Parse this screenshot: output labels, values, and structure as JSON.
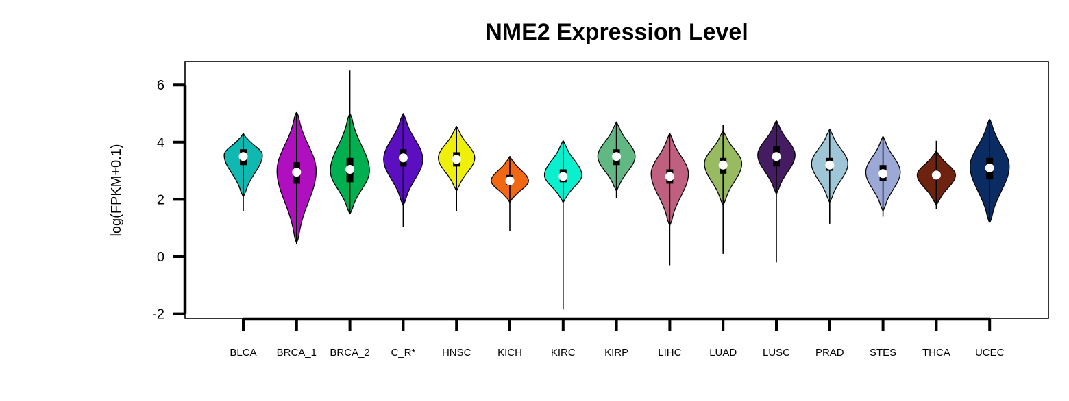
{
  "chart_data": {
    "type": "violin",
    "title": "NME2 Expression Level",
    "xlabel": "",
    "ylabel": "log(FPKM+0.1)",
    "ylim": [
      -2,
      6.5
    ],
    "yticks": [
      -2,
      0,
      2,
      4,
      6
    ],
    "grid": false,
    "legend": "none",
    "categories": [
      "BLCA",
      "BRCA_1",
      "BRCA_2",
      "C_R*",
      "HNSC",
      "KICH",
      "KIRC",
      "KIRP",
      "LIHC",
      "LUAD",
      "LUSC",
      "PRAD",
      "STES",
      "THCA",
      "UCEC"
    ],
    "series": [
      {
        "category": "BLCA",
        "color": "#0fb8b0",
        "min": 1.6,
        "q1": 3.2,
        "median": 3.5,
        "q3": 3.75,
        "max": 4.3,
        "lo": 2.1,
        "hi": 4.3,
        "mode": 3.55,
        "width": 0.82
      },
      {
        "category": "BRCA_1",
        "color": "#b00fc0",
        "min": 0.45,
        "q1": 2.55,
        "median": 2.95,
        "q3": 3.3,
        "max": 5.05,
        "lo": 0.5,
        "hi": 5.05,
        "mode": 3.0,
        "width": 0.84
      },
      {
        "category": "BRCA_2",
        "color": "#00b050",
        "min": 1.5,
        "q1": 2.6,
        "median": 3.05,
        "q3": 3.45,
        "max": 6.5,
        "lo": 1.5,
        "hi": 5.0,
        "mode": 3.0,
        "width": 0.84
      },
      {
        "category": "C_R*",
        "color": "#5b0fc0",
        "min": 1.05,
        "q1": 3.15,
        "median": 3.45,
        "q3": 3.75,
        "max": 5.0,
        "lo": 1.8,
        "hi": 5.0,
        "mode": 3.4,
        "width": 0.84
      },
      {
        "category": "HNSC",
        "color": "#eef00a",
        "min": 1.6,
        "q1": 3.15,
        "median": 3.4,
        "q3": 3.65,
        "max": 4.55,
        "lo": 2.3,
        "hi": 4.55,
        "mode": 3.45,
        "width": 0.78
      },
      {
        "category": "KICH",
        "color": "#f26812",
        "min": 0.9,
        "q1": 2.5,
        "median": 2.65,
        "q3": 2.85,
        "max": 3.5,
        "lo": 1.9,
        "hi": 3.5,
        "mode": 2.65,
        "width": 0.8
      },
      {
        "category": "KIRC",
        "color": "#0af0cf",
        "min": -1.85,
        "q1": 2.6,
        "median": 2.8,
        "q3": 3.05,
        "max": 4.05,
        "lo": 1.9,
        "hi": 4.05,
        "mode": 2.85,
        "width": 0.8
      },
      {
        "category": "KIRP",
        "color": "#62b882",
        "min": 2.05,
        "q1": 3.2,
        "median": 3.5,
        "q3": 3.75,
        "max": 4.7,
        "lo": 2.3,
        "hi": 4.7,
        "mode": 3.5,
        "width": 0.8
      },
      {
        "category": "LIHC",
        "color": "#c06080",
        "min": -0.3,
        "q1": 2.55,
        "median": 2.8,
        "q3": 3.05,
        "max": 4.3,
        "lo": 1.1,
        "hi": 4.3,
        "mode": 2.9,
        "width": 0.8
      },
      {
        "category": "LUAD",
        "color": "#98bb62",
        "min": 0.1,
        "q1": 2.9,
        "median": 3.2,
        "q3": 3.45,
        "max": 4.6,
        "lo": 1.8,
        "hi": 4.4,
        "mode": 3.25,
        "width": 0.8
      },
      {
        "category": "LUSC",
        "color": "#451c62",
        "min": -0.2,
        "q1": 3.15,
        "median": 3.5,
        "q3": 3.85,
        "max": 4.75,
        "lo": 2.2,
        "hi": 4.75,
        "mode": 3.55,
        "width": 0.8
      },
      {
        "category": "PRAD",
        "color": "#9ec6d6",
        "min": 1.15,
        "q1": 3.0,
        "median": 3.2,
        "q3": 3.45,
        "max": 4.45,
        "lo": 1.9,
        "hi": 4.45,
        "mode": 3.25,
        "width": 0.78
      },
      {
        "category": "STES",
        "color": "#9ca8d6",
        "min": 1.4,
        "q1": 2.65,
        "median": 2.9,
        "q3": 3.2,
        "max": 4.2,
        "lo": 1.6,
        "hi": 4.2,
        "mode": 2.95,
        "width": 0.74
      },
      {
        "category": "THCA",
        "color": "#6e2210",
        "min": 1.65,
        "q1": 2.7,
        "median": 2.85,
        "q3": 3.0,
        "max": 4.05,
        "lo": 1.8,
        "hi": 3.7,
        "mode": 2.85,
        "width": 0.82
      },
      {
        "category": "UCEC",
        "color": "#0a2c62",
        "min": 1.2,
        "q1": 2.7,
        "median": 3.1,
        "q3": 3.45,
        "max": 4.8,
        "lo": 1.2,
        "hi": 4.8,
        "mode": 3.15,
        "width": 0.84
      }
    ]
  }
}
